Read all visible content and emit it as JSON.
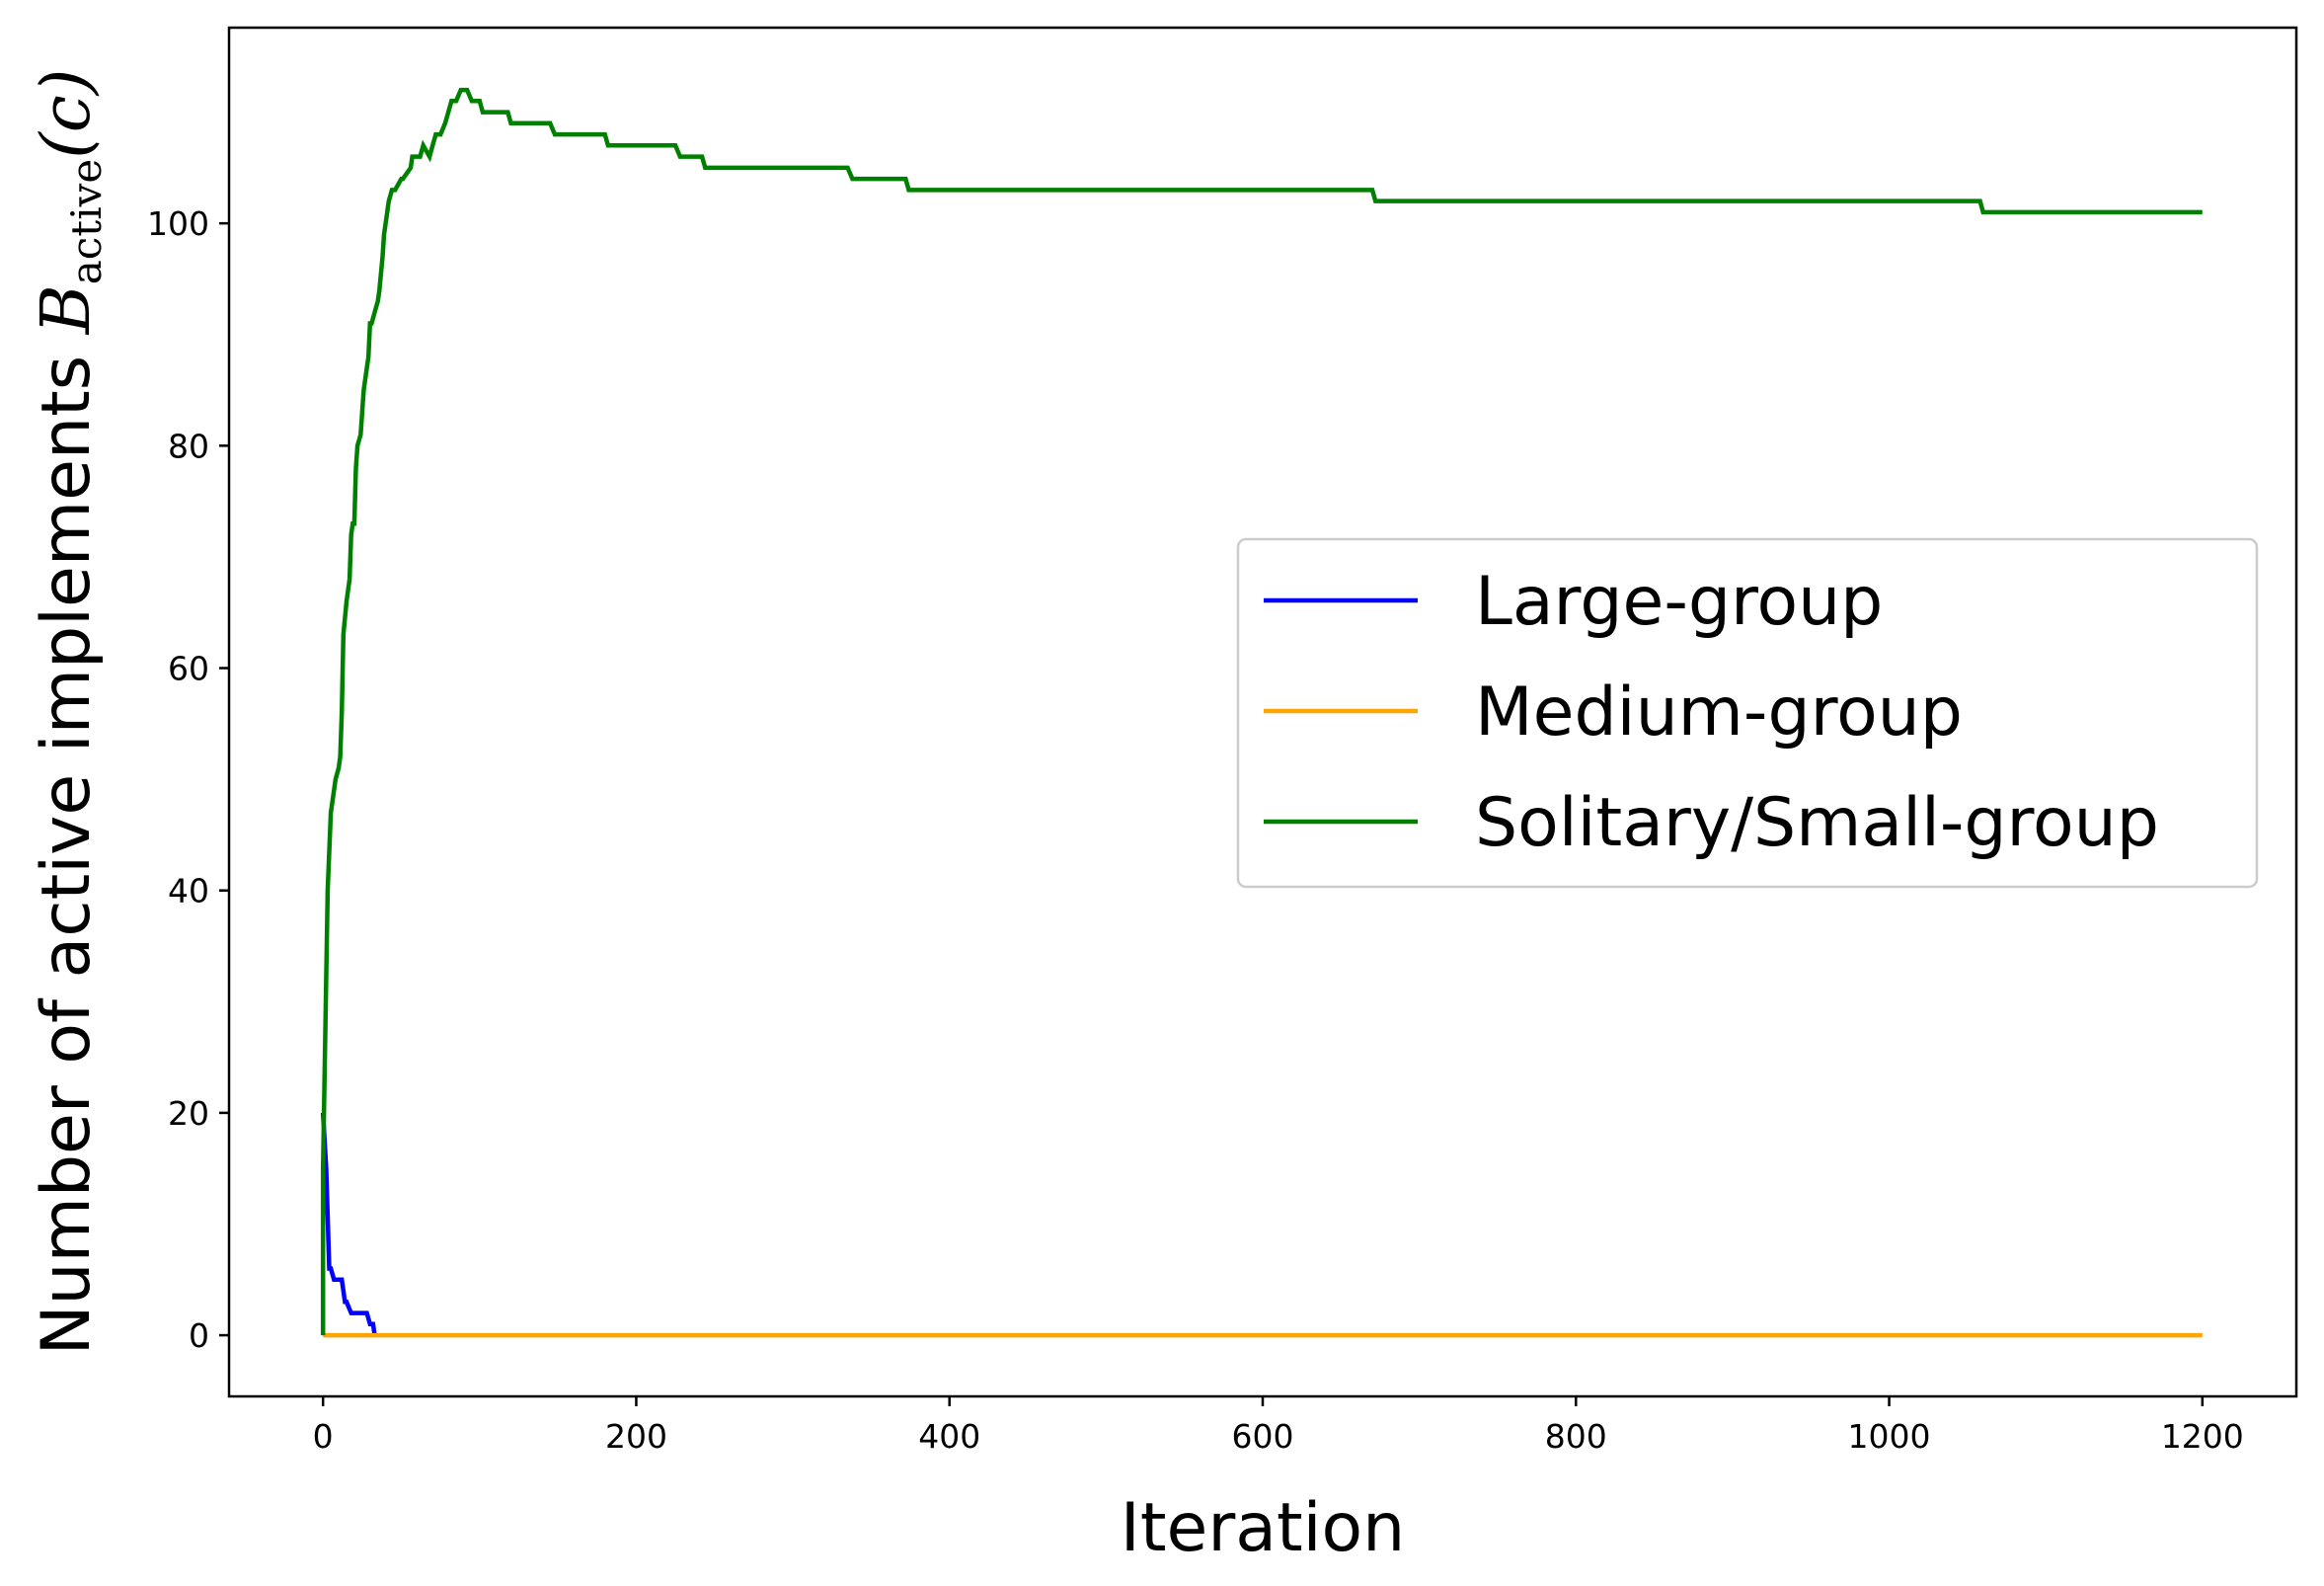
{
  "chart_data": {
    "type": "line",
    "xlabel": "Iteration",
    "ylabel": {
      "text": "Number of active implements ",
      "symbol": "B",
      "subscript": "active",
      "argument": "(c)"
    },
    "xlim": [
      -60,
      1260
    ],
    "ylim": [
      -5.5,
      117.6
    ],
    "xticks": [
      0,
      200,
      400,
      600,
      800,
      1000,
      1200
    ],
    "yticks": [
      0,
      20,
      40,
      60,
      80,
      100
    ],
    "grid": false,
    "legend_position": "center-right",
    "series": [
      {
        "name": "Large-group",
        "color": "#0000ff",
        "x": [
          0,
          2,
          4,
          5,
          7,
          8,
          10,
          12,
          14,
          15,
          18,
          20,
          22,
          25,
          28,
          30,
          32,
          33
        ],
        "y": [
          20,
          15,
          6,
          6,
          5,
          5,
          5,
          5,
          3,
          3,
          2,
          2,
          2,
          2,
          2,
          1,
          1,
          0
        ]
      },
      {
        "name": "Medium-group",
        "color": "#ffa500",
        "x": [
          0,
          1200
        ],
        "y": [
          0,
          0
        ]
      },
      {
        "name": "Solitary/Small-group",
        "color": "#008000",
        "x": [
          0,
          0,
          3,
          5,
          7,
          8,
          10,
          11,
          12,
          13,
          15,
          17,
          18,
          19,
          20,
          21,
          22,
          24,
          26,
          27,
          28,
          29,
          30,
          31,
          33,
          35,
          36,
          38,
          39,
          40,
          41,
          42,
          44,
          46,
          50,
          51,
          56,
          57,
          62,
          64,
          68,
          70,
          72,
          75,
          78,
          80,
          82,
          85,
          88,
          90,
          92,
          95,
          100,
          102,
          104,
          106,
          110,
          118,
          120,
          145,
          148,
          180,
          182,
          225,
          228,
          242,
          244,
          335,
          338,
          372,
          374,
          670,
          672,
          1058,
          1060,
          1200
        ],
        "y": [
          0,
          15,
          40,
          47,
          49,
          50,
          51,
          52,
          56,
          63,
          66,
          68,
          72,
          73,
          73,
          78,
          80,
          81,
          85,
          86,
          87,
          88,
          91,
          91,
          92,
          93,
          94,
          97,
          99,
          100,
          101,
          102,
          103,
          103,
          104,
          104,
          105,
          106,
          106,
          107,
          106,
          107,
          108,
          108,
          109,
          110,
          111,
          111,
          112,
          112,
          112,
          111,
          111,
          110,
          110,
          110,
          110,
          110,
          109,
          109,
          108,
          108,
          107,
          107,
          106,
          106,
          105,
          105,
          104,
          104,
          103,
          103,
          102,
          102,
          101,
          101
        ]
      }
    ]
  }
}
